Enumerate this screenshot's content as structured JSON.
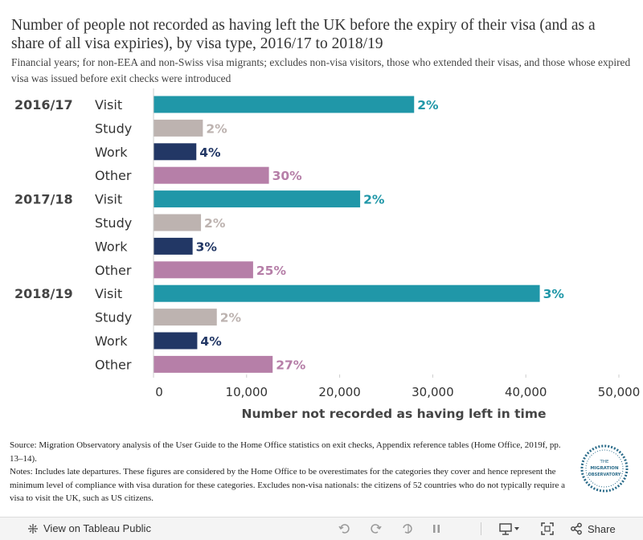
{
  "title": "Number of people not recorded as having left the UK before the expiry of their visa (and as a share of all visa expiries), by visa type, 2016/17 to 2018/19",
  "subtitle": "Financial years; for non-EEA and non-Swiss visa migrants; excludes non-visa visitors, those who extended their visas, and those whose expired visa was issued before exit checks were introduced",
  "colors": {
    "Visit": "#2097a8",
    "Study": "#bdb3b0",
    "Work": "#223765",
    "Other": "#b67fa8",
    "axis": "#cccccc"
  },
  "chart_data": {
    "type": "bar",
    "orientation": "horizontal",
    "title": "Number of people not recorded as having left the UK before the expiry of their visa (and as a share of all visa expiries), by visa type, 2016/17 to 2018/19",
    "xlabel": "Number not recorded as having left in time",
    "ylabel": "",
    "xlim": [
      0,
      50000
    ],
    "xticks": [
      0,
      10000,
      20000,
      30000,
      40000,
      50000
    ],
    "xtick_labels": [
      "0",
      "10,000",
      "20,000",
      "30,000",
      "40,000",
      "50,000"
    ],
    "groups": [
      {
        "year": "2016/17",
        "bars": [
          {
            "type": "Visit",
            "value": 28000,
            "label": "2%"
          },
          {
            "type": "Study",
            "value": 5300,
            "label": "2%"
          },
          {
            "type": "Work",
            "value": 4600,
            "label": "4%"
          },
          {
            "type": "Other",
            "value": 12400,
            "label": "30%"
          }
        ]
      },
      {
        "year": "2017/18",
        "bars": [
          {
            "type": "Visit",
            "value": 22200,
            "label": "2%"
          },
          {
            "type": "Study",
            "value": 5100,
            "label": "2%"
          },
          {
            "type": "Work",
            "value": 4200,
            "label": "3%"
          },
          {
            "type": "Other",
            "value": 10700,
            "label": "25%"
          }
        ]
      },
      {
        "year": "2018/19",
        "bars": [
          {
            "type": "Visit",
            "value": 41500,
            "label": "3%"
          },
          {
            "type": "Study",
            "value": 6800,
            "label": "2%"
          },
          {
            "type": "Work",
            "value": 4700,
            "label": "4%"
          },
          {
            "type": "Other",
            "value": 12800,
            "label": "27%"
          }
        ]
      }
    ]
  },
  "footer": {
    "source": "Source: Migration Observatory analysis of the User Guide to the Home Office statistics on exit checks, Appendix reference tables (Home Office, 2019f, pp. 13–14).",
    "notes": "Notes: Includes late departures. These figures are considered by the Home Office to be overestimates for the categories they cover and hence represent the minimum level of compliance with visa duration for these categories. Excludes non-visa nationals: the citizens of 52 countries who do not typically require a visa to visit the UK, such as US citizens."
  },
  "logo": {
    "line1": "THE",
    "line2": "MIGRATION",
    "line3": "OBSERVATORY"
  },
  "toolbar": {
    "view_label": "View on Tableau Public",
    "share_label": "Share"
  }
}
